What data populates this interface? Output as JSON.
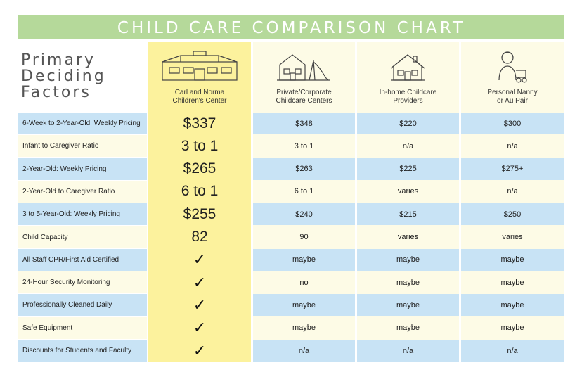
{
  "title": "CHILD CARE COMPARISON CHART",
  "factors_heading": [
    "Primary",
    "Deciding",
    "Factors"
  ],
  "columns": [
    {
      "name": "Carl and Norma Children's Center",
      "lines": [
        "Carl and Norma",
        "Children's Center"
      ],
      "icon": "building-icon"
    },
    {
      "name": "Private/Corporate Childcare Centers",
      "lines": [
        "Private/Corporate",
        "Childcare Centers"
      ],
      "icon": "schoolhouse-icon"
    },
    {
      "name": "In-home Childcare Providers",
      "lines": [
        "In-home Childcare",
        "Providers"
      ],
      "icon": "house-icon"
    },
    {
      "name": "Personal Nanny or Au Pair",
      "lines": [
        "Personal Nanny",
        "or Au Pair"
      ],
      "icon": "nanny-icon"
    }
  ],
  "rows": [
    {
      "label": "6-Week to 2-Year-Old: Weekly Pricing",
      "values": [
        "$337",
        "$348",
        "$220",
        "$300"
      ]
    },
    {
      "label": "Infant to Caregiver Ratio",
      "values": [
        "3 to 1",
        "3 to 1",
        "n/a",
        "n/a"
      ]
    },
    {
      "label": "2-Year-Old: Weekly Pricing",
      "values": [
        "$265",
        "$263",
        "$225",
        "$275+"
      ]
    },
    {
      "label": "2-Year-Old to Caregiver Ratio",
      "values": [
        "6 to 1",
        "6 to 1",
        "varies",
        "n/a"
      ]
    },
    {
      "label": "3 to 5-Year-Old: Weekly Pricing",
      "values": [
        "$255",
        "$240",
        "$215",
        "$250"
      ]
    },
    {
      "label": "Child Capacity",
      "values": [
        "82",
        "90",
        "varies",
        "varies"
      ]
    },
    {
      "label": "All Staff CPR/First Aid Certified",
      "values": [
        "✓",
        "maybe",
        "maybe",
        "maybe"
      ]
    },
    {
      "label": "24-Hour Security Monitoring",
      "values": [
        "✓",
        "no",
        "maybe",
        "maybe"
      ]
    },
    {
      "label": "Professionally Cleaned Daily",
      "values": [
        "✓",
        "maybe",
        "maybe",
        "maybe"
      ]
    },
    {
      "label": "Safe Equipment",
      "values": [
        "✓",
        "maybe",
        "maybe",
        "maybe"
      ]
    },
    {
      "label": "Discounts for Students and Faculty",
      "values": [
        "✓",
        "n/a",
        "n/a",
        "n/a"
      ]
    }
  ],
  "colors": {
    "banner": "#b5d99a",
    "highlight_column": "#fcf29d",
    "row_blue": "#c8e3f5",
    "row_cream": "#fdfbe6"
  }
}
